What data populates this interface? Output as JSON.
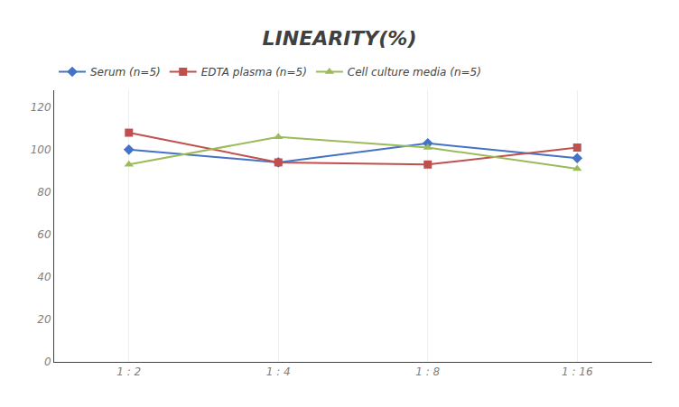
{
  "chart_data": {
    "type": "line",
    "title": "LINEARITY(%)",
    "categories": [
      "1 : 2",
      "1 : 4",
      "1 : 8",
      "1 : 16"
    ],
    "series": [
      {
        "name": "Serum (n=5)",
        "color": "#4472C4",
        "marker": "diamond",
        "values": [
          100,
          94,
          103,
          96
        ]
      },
      {
        "name": "EDTA plasma (n=5)",
        "color": "#C0504D",
        "marker": "square",
        "values": [
          108,
          94,
          93,
          101
        ]
      },
      {
        "name": "Cell culture media (n=5)",
        "color": "#9BBB59",
        "marker": "triangle-up",
        "values": [
          93,
          106,
          101,
          91
        ]
      }
    ],
    "ylim": [
      0,
      128
    ],
    "yticks": [
      0,
      20,
      40,
      60,
      80,
      100,
      120
    ],
    "grid": true,
    "legend": "top"
  }
}
